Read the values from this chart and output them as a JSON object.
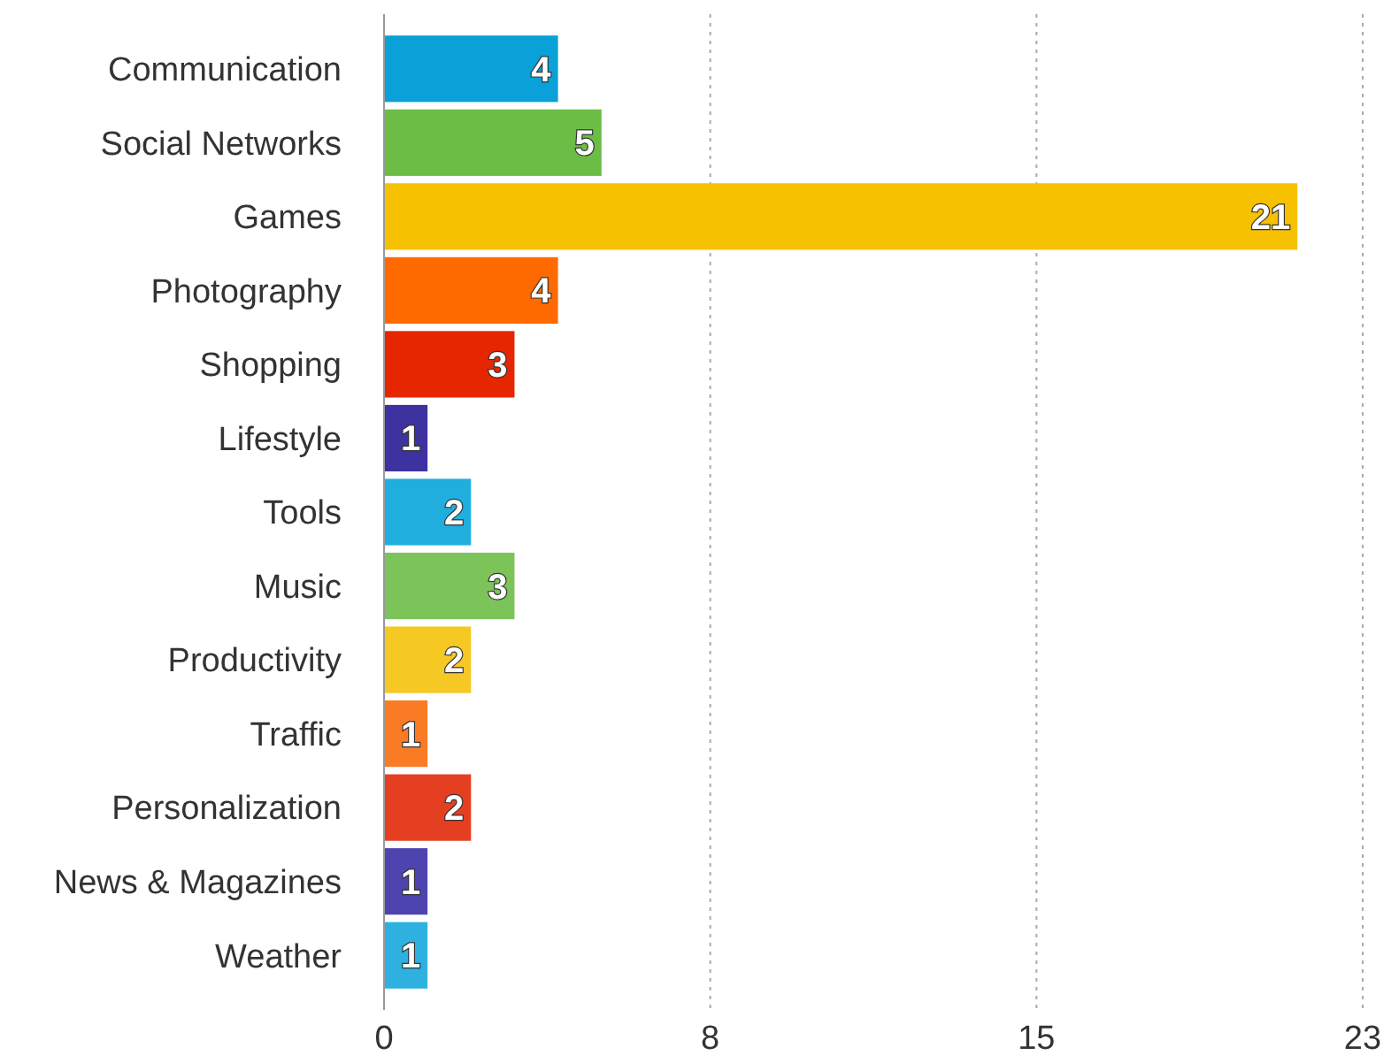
{
  "chart_data": {
    "type": "bar",
    "orientation": "horizontal",
    "categories": [
      "Communication",
      "Social Networks",
      "Games",
      "Photography",
      "Shopping",
      "Lifestyle",
      "Tools",
      "Music",
      "Productivity",
      "Traffic",
      "Personalization",
      "News & Magazines",
      "Weather"
    ],
    "values": [
      4,
      5,
      21,
      4,
      3,
      1,
      2,
      3,
      2,
      1,
      2,
      1,
      1
    ],
    "colors": [
      "#0aa0d8",
      "#6bbd45",
      "#f5c100",
      "#ff6a00",
      "#e52600",
      "#3d32a0",
      "#1faedd",
      "#7cc35a",
      "#f6c823",
      "#f97c25",
      "#e53f22",
      "#4d44b0",
      "#2eb1e0"
    ],
    "xlim": [
      0,
      22.5
    ],
    "xticks": [
      0,
      {
        "value": 7.5,
        "label": "8"
      },
      {
        "value": 15,
        "label": "15"
      },
      {
        "value": 22.5,
        "label": "23"
      }
    ],
    "grid": "x",
    "data_labels": true
  }
}
